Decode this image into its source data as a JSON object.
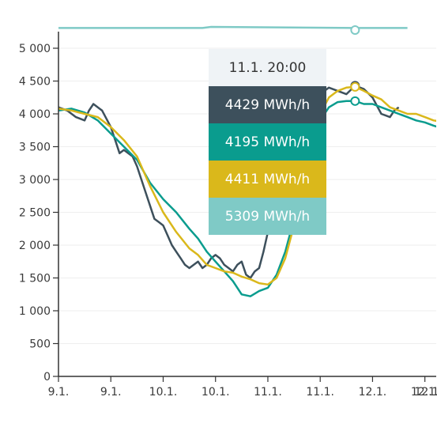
{
  "colors": {
    "series1": "#3d505c",
    "series2": "#0a9c8e",
    "series3": "#dab81b",
    "series4": "#7fcac6",
    "axis": "#333333",
    "grid": "#eeeeee"
  },
  "tooltip": {
    "title": "11.1. 20:00",
    "values": [
      "4429 MWh/h",
      "4195 MWh/h",
      "4411 MWh/h",
      "5309 MWh/h"
    ]
  },
  "chart_data": {
    "type": "line",
    "ylim": [
      0,
      5200
    ],
    "yticks": [
      0,
      500,
      1000,
      1500,
      2000,
      2500,
      3000,
      3500,
      4000,
      4500,
      5000
    ],
    "ytick_labels": [
      "0",
      "500",
      "1 000",
      "1 500",
      "2 000",
      "2 500",
      "3 000",
      "3 500",
      "4 000",
      "4 500",
      "5 000"
    ],
    "xlim_hours": [
      0,
      97
    ],
    "xticks": [
      0,
      12,
      24,
      36,
      48,
      60,
      72,
      84,
      96
    ],
    "xtick_labels": [
      "9.1.",
      "9.1.",
      "10.1.",
      "10.1.",
      "11.1.",
      "11.1.",
      "12.1.",
      "12.1.",
      "12.1"
    ],
    "hover_hour": 68,
    "series": [
      {
        "points": [
          [
            0,
            4100
          ],
          [
            2,
            4050
          ],
          [
            4,
            3950
          ],
          [
            6,
            3900
          ],
          [
            7,
            4050
          ],
          [
            8,
            4150
          ],
          [
            10,
            4050
          ],
          [
            12,
            3800
          ],
          [
            13,
            3600
          ],
          [
            14,
            3400
          ],
          [
            15,
            3450
          ],
          [
            16,
            3400
          ],
          [
            17,
            3350
          ],
          [
            18,
            3200
          ],
          [
            19,
            3000
          ],
          [
            20,
            2800
          ],
          [
            21,
            2600
          ],
          [
            22,
            2400
          ],
          [
            23,
            2350
          ],
          [
            24,
            2300
          ],
          [
            25,
            2150
          ],
          [
            26,
            2000
          ],
          [
            27,
            1900
          ],
          [
            28,
            1800
          ],
          [
            29,
            1700
          ],
          [
            30,
            1650
          ],
          [
            31,
            1700
          ],
          [
            32,
            1750
          ],
          [
            33,
            1650
          ],
          [
            34,
            1700
          ],
          [
            35,
            1800
          ],
          [
            36,
            1850
          ],
          [
            37,
            1800
          ],
          [
            38,
            1700
          ],
          [
            39,
            1650
          ],
          [
            40,
            1600
          ],
          [
            41,
            1700
          ],
          [
            42,
            1750
          ],
          [
            43,
            1550
          ],
          [
            44,
            1500
          ],
          [
            45,
            1600
          ],
          [
            46,
            1650
          ],
          [
            47,
            1900
          ],
          [
            48,
            2200
          ],
          [
            50,
            2700
          ],
          [
            52,
            3200
          ],
          [
            54,
            3600
          ],
          [
            56,
            3900
          ],
          [
            58,
            4100
          ],
          [
            60,
            4300
          ],
          [
            62,
            4400
          ],
          [
            64,
            4350
          ],
          [
            66,
            4300
          ],
          [
            68,
            4429
          ],
          [
            70,
            4380
          ],
          [
            72,
            4250
          ],
          [
            74,
            4000
          ],
          [
            76,
            3950
          ],
          [
            77,
            4050
          ],
          [
            78,
            4100
          ]
        ]
      },
      {
        "points": [
          [
            0,
            4050
          ],
          [
            3,
            4080
          ],
          [
            6,
            4020
          ],
          [
            9,
            3900
          ],
          [
            12,
            3700
          ],
          [
            15,
            3500
          ],
          [
            18,
            3300
          ],
          [
            21,
            2950
          ],
          [
            24,
            2700
          ],
          [
            27,
            2500
          ],
          [
            30,
            2250
          ],
          [
            32,
            2100
          ],
          [
            34,
            1900
          ],
          [
            36,
            1750
          ],
          [
            38,
            1600
          ],
          [
            40,
            1450
          ],
          [
            42,
            1250
          ],
          [
            44,
            1220
          ],
          [
            46,
            1300
          ],
          [
            48,
            1350
          ],
          [
            50,
            1550
          ],
          [
            52,
            1900
          ],
          [
            54,
            2400
          ],
          [
            56,
            3100
          ],
          [
            58,
            3600
          ],
          [
            60,
            3900
          ],
          [
            62,
            4100
          ],
          [
            64,
            4180
          ],
          [
            66,
            4195
          ],
          [
            68,
            4195
          ],
          [
            70,
            4150
          ],
          [
            72,
            4150
          ],
          [
            74,
            4100
          ],
          [
            76,
            4050
          ],
          [
            78,
            4000
          ],
          [
            80,
            3950
          ],
          [
            82,
            3900
          ],
          [
            84,
            3870
          ],
          [
            86,
            3820
          ],
          [
            88,
            3780
          ],
          [
            90,
            3750
          ],
          [
            92,
            3720
          ],
          [
            94,
            3700
          ],
          [
            96,
            3700
          ],
          [
            97,
            3720
          ]
        ]
      },
      {
        "points": [
          [
            0,
            4080
          ],
          [
            3,
            4050
          ],
          [
            6,
            4000
          ],
          [
            9,
            3950
          ],
          [
            12,
            3800
          ],
          [
            15,
            3600
          ],
          [
            18,
            3350
          ],
          [
            21,
            2900
          ],
          [
            24,
            2500
          ],
          [
            27,
            2200
          ],
          [
            30,
            1950
          ],
          [
            32,
            1850
          ],
          [
            34,
            1700
          ],
          [
            36,
            1650
          ],
          [
            38,
            1600
          ],
          [
            40,
            1580
          ],
          [
            42,
            1520
          ],
          [
            44,
            1480
          ],
          [
            46,
            1420
          ],
          [
            48,
            1400
          ],
          [
            50,
            1500
          ],
          [
            52,
            1800
          ],
          [
            54,
            2300
          ],
          [
            56,
            3000
          ],
          [
            58,
            3600
          ],
          [
            60,
            4000
          ],
          [
            62,
            4250
          ],
          [
            64,
            4350
          ],
          [
            66,
            4400
          ],
          [
            68,
            4411
          ],
          [
            70,
            4350
          ],
          [
            72,
            4280
          ],
          [
            74,
            4220
          ],
          [
            76,
            4100
          ],
          [
            78,
            4050
          ],
          [
            80,
            4000
          ],
          [
            82,
            4000
          ],
          [
            84,
            3950
          ],
          [
            86,
            3900
          ],
          [
            88,
            3880
          ],
          [
            90,
            3850
          ],
          [
            92,
            3820
          ],
          [
            94,
            3800
          ],
          [
            96,
            3790
          ],
          [
            97,
            3800
          ]
        ]
      },
      {
        "points": [
          [
            0,
            5309
          ],
          [
            30,
            5309
          ],
          [
            33,
            5309
          ],
          [
            35,
            5600
          ],
          [
            68,
            5309
          ],
          [
            80,
            5309
          ]
        ]
      }
    ]
  }
}
